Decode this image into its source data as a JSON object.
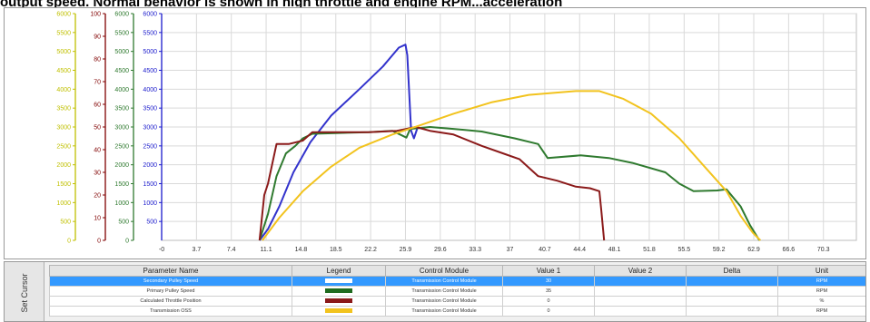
{
  "banner": "output speed. Normal behavior is shown in high throttle and engine RPM...acceleration",
  "chart_data": {
    "type": "line",
    "x_ticks": [
      "-0",
      "3.7",
      "7.4",
      "11.1",
      "14.8",
      "18.5",
      "22.2",
      "25.9",
      "29.6",
      "33.3",
      "37",
      "40.7",
      "44.4",
      "48.1",
      "51.8",
      "55.5",
      "59.2",
      "62.9",
      "66.6",
      "70.3"
    ],
    "axes": [
      {
        "name": "speed-axis-6000",
        "color": "#c0c000",
        "ticks": [
          0,
          500,
          1000,
          1500,
          2000,
          2500,
          3000,
          3500,
          4000,
          4500,
          5000,
          5500,
          6000
        ]
      },
      {
        "name": "percent-axis",
        "color": "#800000",
        "ticks": [
          0,
          10,
          20,
          30,
          40,
          50,
          60,
          70,
          80,
          90,
          100
        ]
      },
      {
        "name": "speed-axis-green",
        "color": "#2f7a2f",
        "ticks": [
          0,
          500,
          1000,
          1500,
          2000,
          2500,
          3000,
          3500,
          4000,
          4500,
          5000,
          5500,
          6000
        ]
      },
      {
        "name": "speed-axis-blue",
        "color": "#1a1acc",
        "ticks": [
          500,
          1000,
          1500,
          2000,
          2500,
          3000,
          3500,
          4000,
          4500,
          5000,
          5500,
          6000
        ]
      }
    ],
    "series": [
      {
        "name": "Secondary Pulley Speed",
        "color": "#3333cc",
        "points": [
          [
            10.4,
            0
          ],
          [
            11.3,
            300
          ],
          [
            12.5,
            900
          ],
          [
            14.0,
            1800
          ],
          [
            15.8,
            2600
          ],
          [
            18.0,
            3300
          ],
          [
            21.0,
            4000
          ],
          [
            23.5,
            4600
          ],
          [
            25.2,
            5100
          ],
          [
            25.9,
            5180
          ],
          [
            26.1,
            4900
          ],
          [
            26.5,
            2900
          ],
          [
            26.8,
            2700
          ],
          [
            27.2,
            3000
          ]
        ]
      },
      {
        "name": "Primary Pulley Speed",
        "color": "#2f7a2f",
        "points": [
          [
            10.4,
            0
          ],
          [
            11.3,
            700
          ],
          [
            12.2,
            1700
          ],
          [
            13.2,
            2300
          ],
          [
            14.2,
            2500
          ],
          [
            15.0,
            2700
          ],
          [
            16.0,
            2820
          ],
          [
            18.5,
            2840
          ],
          [
            22.0,
            2860
          ],
          [
            24.5,
            2900
          ],
          [
            26.0,
            2720
          ],
          [
            26.4,
            2950
          ],
          [
            28.5,
            3000
          ],
          [
            31.0,
            2950
          ],
          [
            34.0,
            2880
          ],
          [
            37.5,
            2700
          ],
          [
            40.0,
            2550
          ],
          [
            41.0,
            2180
          ],
          [
            44.5,
            2250
          ],
          [
            47.5,
            2180
          ],
          [
            50.0,
            2050
          ],
          [
            53.5,
            1800
          ],
          [
            55.0,
            1500
          ],
          [
            56.5,
            1300
          ],
          [
            59.0,
            1320
          ],
          [
            60.0,
            1350
          ],
          [
            61.5,
            900
          ],
          [
            62.5,
            400
          ],
          [
            63.5,
            0
          ]
        ]
      },
      {
        "name": "Calculated Throttle Position",
        "color": "#8b1a1a",
        "points": [
          [
            10.4,
            0
          ],
          [
            10.9,
            1200
          ],
          [
            11.3,
            1500
          ],
          [
            12.2,
            2550
          ],
          [
            13.5,
            2550
          ],
          [
            15.0,
            2640
          ],
          [
            16.0,
            2860
          ],
          [
            22.0,
            2860
          ],
          [
            25.0,
            2900
          ],
          [
            27.0,
            3000
          ],
          [
            28.5,
            2900
          ],
          [
            31.0,
            2800
          ],
          [
            34.0,
            2500
          ],
          [
            36.5,
            2280
          ],
          [
            38.0,
            2150
          ],
          [
            40.0,
            1700
          ],
          [
            42.0,
            1580
          ],
          [
            44.0,
            1420
          ],
          [
            45.5,
            1380
          ],
          [
            46.5,
            1300
          ],
          [
            46.7,
            800
          ],
          [
            47.0,
            0
          ]
        ]
      },
      {
        "name": "Transmission OSS",
        "color": "#f2c31e",
        "points": [
          [
            10.7,
            0
          ],
          [
            12.5,
            600
          ],
          [
            15.0,
            1300
          ],
          [
            18.0,
            1950
          ],
          [
            21.0,
            2450
          ],
          [
            24.5,
            2800
          ],
          [
            27.5,
            3050
          ],
          [
            31.0,
            3350
          ],
          [
            35.0,
            3650
          ],
          [
            39.0,
            3850
          ],
          [
            44.0,
            3950
          ],
          [
            46.5,
            3950
          ],
          [
            49.0,
            3750
          ],
          [
            52.0,
            3350
          ],
          [
            55.0,
            2700
          ],
          [
            57.5,
            2000
          ],
          [
            60.0,
            1300
          ],
          [
            61.5,
            650
          ],
          [
            62.8,
            200
          ],
          [
            63.6,
            0
          ]
        ]
      }
    ]
  },
  "side_tab": "Set Cursor",
  "table": {
    "headers": [
      "Parameter Name",
      "Legend",
      "Control Module",
      "Value 1",
      "Value 2",
      "Delta",
      "Unit"
    ],
    "rows": [
      {
        "name": "Secondary Pulley Speed",
        "color": "#ffffff",
        "module": "Transmission Control Module",
        "value1": "30",
        "value2": "",
        "delta": "",
        "unit": "RPM",
        "selected": true
      },
      {
        "name": "Primary Pulley Speed",
        "color": "#1f6b1f",
        "module": "Transmission Control Module",
        "value1": "35",
        "value2": "",
        "delta": "",
        "unit": "RPM",
        "selected": false
      },
      {
        "name": "Calculated Throttle Position",
        "color": "#8b1a1a",
        "module": "Transmission Control Module",
        "value1": "0",
        "value2": "",
        "delta": "",
        "unit": "%",
        "selected": false
      },
      {
        "name": "Transmission OSS",
        "color": "#f2c31e",
        "module": "Transmission Control Module",
        "value1": "0",
        "value2": "",
        "delta": "",
        "unit": "RPM",
        "selected": false
      }
    ]
  }
}
